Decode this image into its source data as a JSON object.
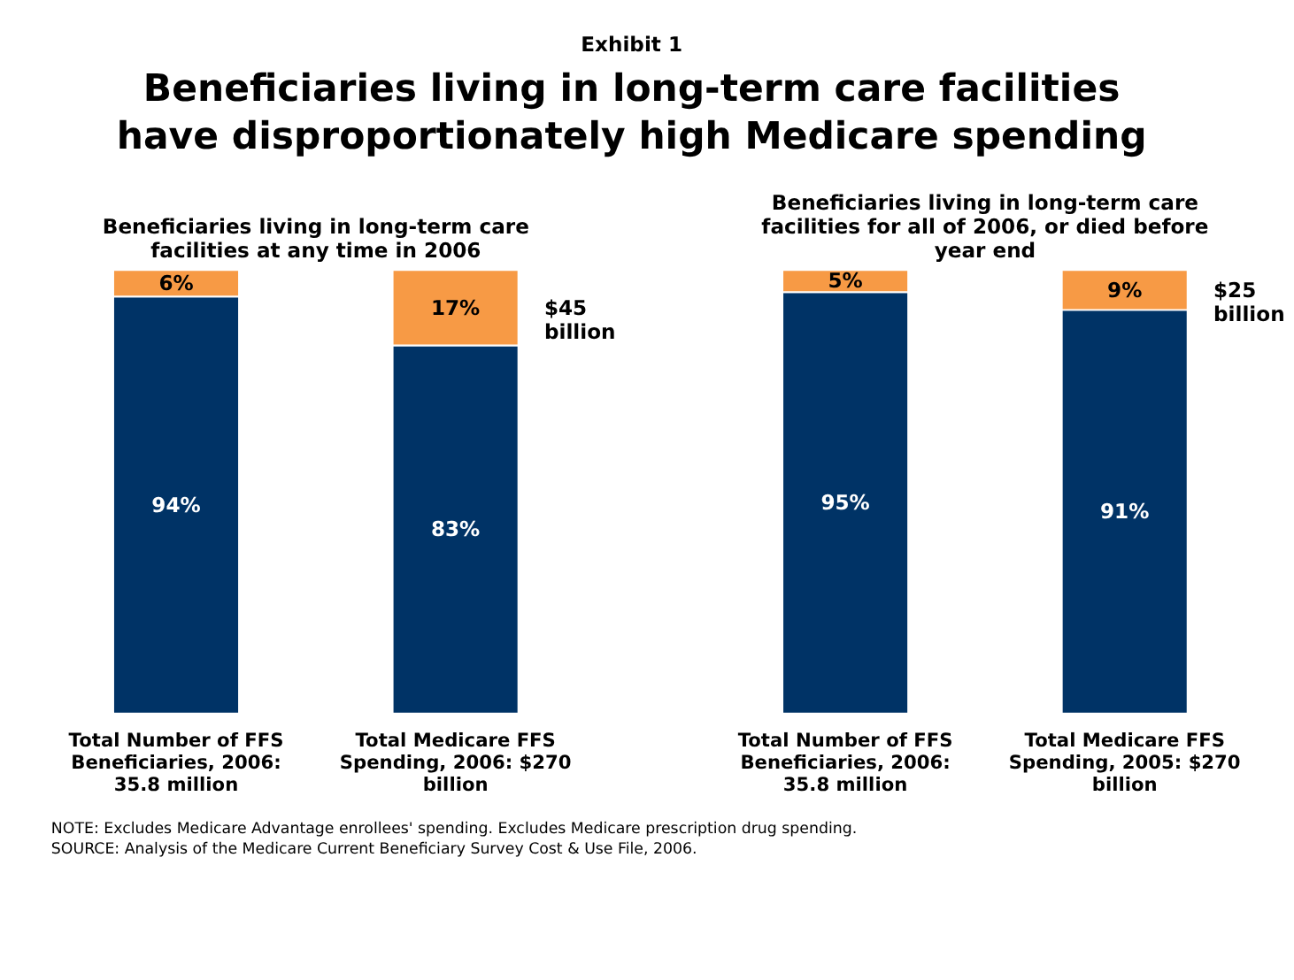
{
  "chart_data": [
    {
      "type": "other",
      "subtitle": "Exhibit 1",
      "title": "Beneficiaries living in long-term care facilities have disproportionately high Medicare spending",
      "annotations": [
        "NOTE: Excludes Medicare Advantage enrollees' spending.  Excludes Medicare prescription drug spending.",
        "SOURCE: Analysis of the Medicare Current Beneficiary Survey Cost & Use File, 2006."
      ]
    },
    {
      "type": "bar",
      "stacked": true,
      "title": "Beneficiaries living in long-term care facilities at any time in 2006",
      "categories": [
        "Total Number of FFS Beneficiaries, 2006: 35.8 million",
        "Total Medicare FFS Spending, 2006: $270 billion"
      ],
      "series": [
        {
          "color": "#003366",
          "values": [
            94,
            83
          ],
          "value_labels": [
            "94%",
            "83%"
          ]
        },
        {
          "color": "#f79a45",
          "values": [
            6,
            17
          ],
          "value_labels": [
            "6%",
            "17%"
          ]
        }
      ],
      "annotations": [
        "$45 billion"
      ]
    },
    {
      "type": "bar",
      "stacked": true,
      "title": "Beneficiaries living in long-term care facilities for all of 2006, or died before year end",
      "categories": [
        "Total Number of FFS Beneficiaries, 2006: 35.8 million",
        "Total Medicare FFS Spending, 2005: $270 billion"
      ],
      "series": [
        {
          "color": "#003366",
          "values": [
            95,
            91
          ],
          "value_labels": [
            "95%",
            "91%"
          ]
        },
        {
          "color": "#f79a45",
          "values": [
            5,
            9
          ],
          "value_labels": [
            "5%",
            "9%"
          ]
        }
      ],
      "annotations": [
        "$25 billion"
      ]
    }
  ]
}
